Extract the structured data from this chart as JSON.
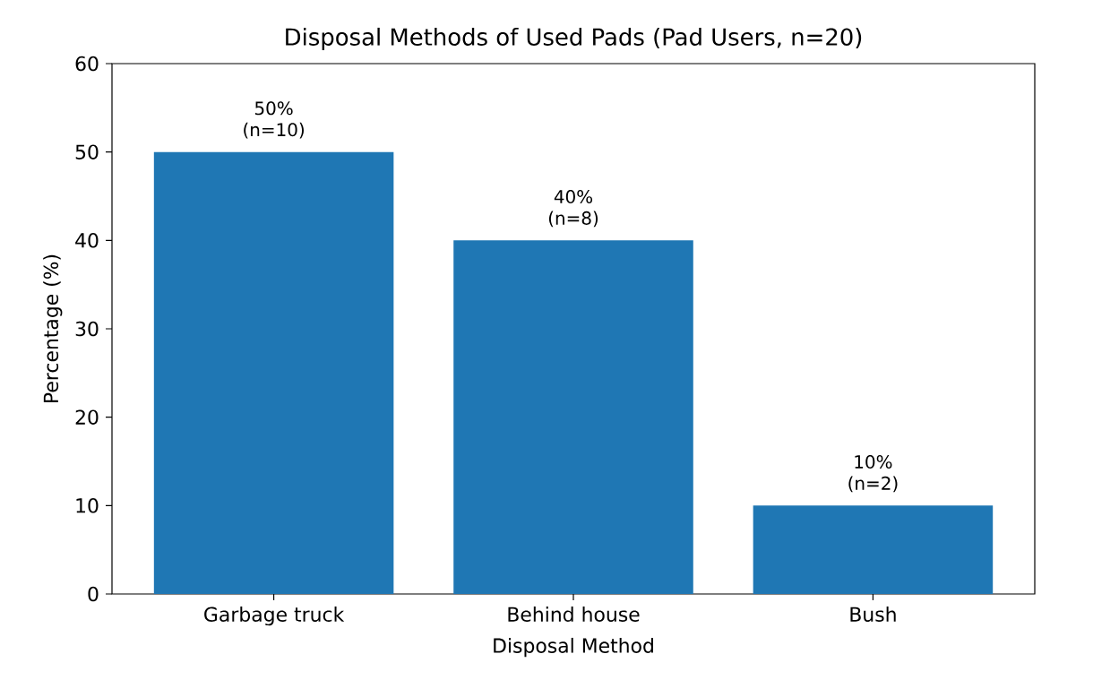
{
  "chart_data": {
    "type": "bar",
    "title": "Disposal Methods of Used Pads (Pad Users, n=20)",
    "xlabel": "Disposal Method",
    "ylabel": "Percentage (%)",
    "categories": [
      "Garbage truck",
      "Behind house",
      "Bush"
    ],
    "values": [
      50,
      40,
      10
    ],
    "value_labels": [
      "50% (n=10)",
      "40% (n=8)",
      "10% (n=2)"
    ],
    "color": "#1f77b4",
    "ylim": [
      0,
      60
    ],
    "yticks": [
      0,
      10,
      20,
      30,
      40,
      50,
      60
    ]
  }
}
